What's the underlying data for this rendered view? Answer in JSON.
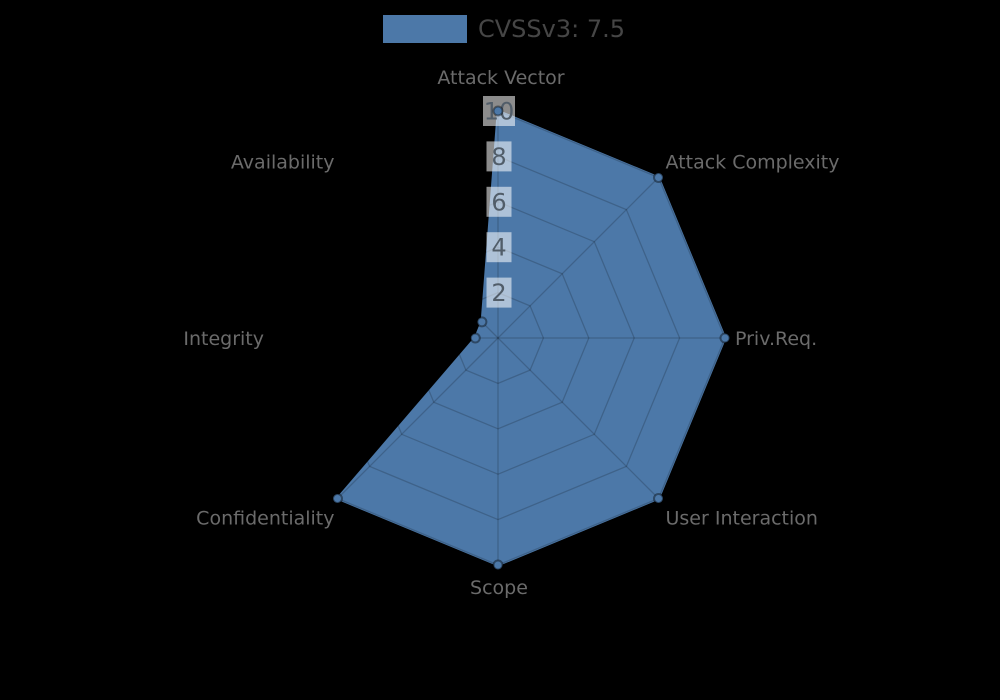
{
  "page": {
    "background": "#000000"
  },
  "legend": {
    "label": "CVSSv3: 7.5",
    "swatch_color": "#4c78a8"
  },
  "chart_data": {
    "type": "radar",
    "title": "",
    "axes": [
      "Attack Vector",
      "Attack Complexity",
      "Priv.Req.",
      "User Interaction",
      "Scope",
      "Confidentiality",
      "Integrity",
      "Availability"
    ],
    "series": [
      {
        "name": "CVSSv3: 7.5",
        "values": [
          10,
          10,
          10,
          10,
          10,
          10,
          1,
          1
        ],
        "color": "#4c78a8"
      }
    ],
    "radial_ticks": [
      2,
      4,
      6,
      8,
      10
    ],
    "rlim": [
      0,
      10
    ],
    "grid": "spider-web",
    "legend_position": "top",
    "style": {
      "fill_color": "#4c78a8",
      "stroke_color": "#4c78a8",
      "marker_ring_color": "rgba(0,0,0,0.4)",
      "grid_color": "rgba(0,0,0,0.18)",
      "axis_label_color": "#6b6b6b",
      "tick_label_color": "#515d69",
      "tick_box_color": "rgba(255,255,255,0.55)",
      "background": "#000000"
    }
  }
}
